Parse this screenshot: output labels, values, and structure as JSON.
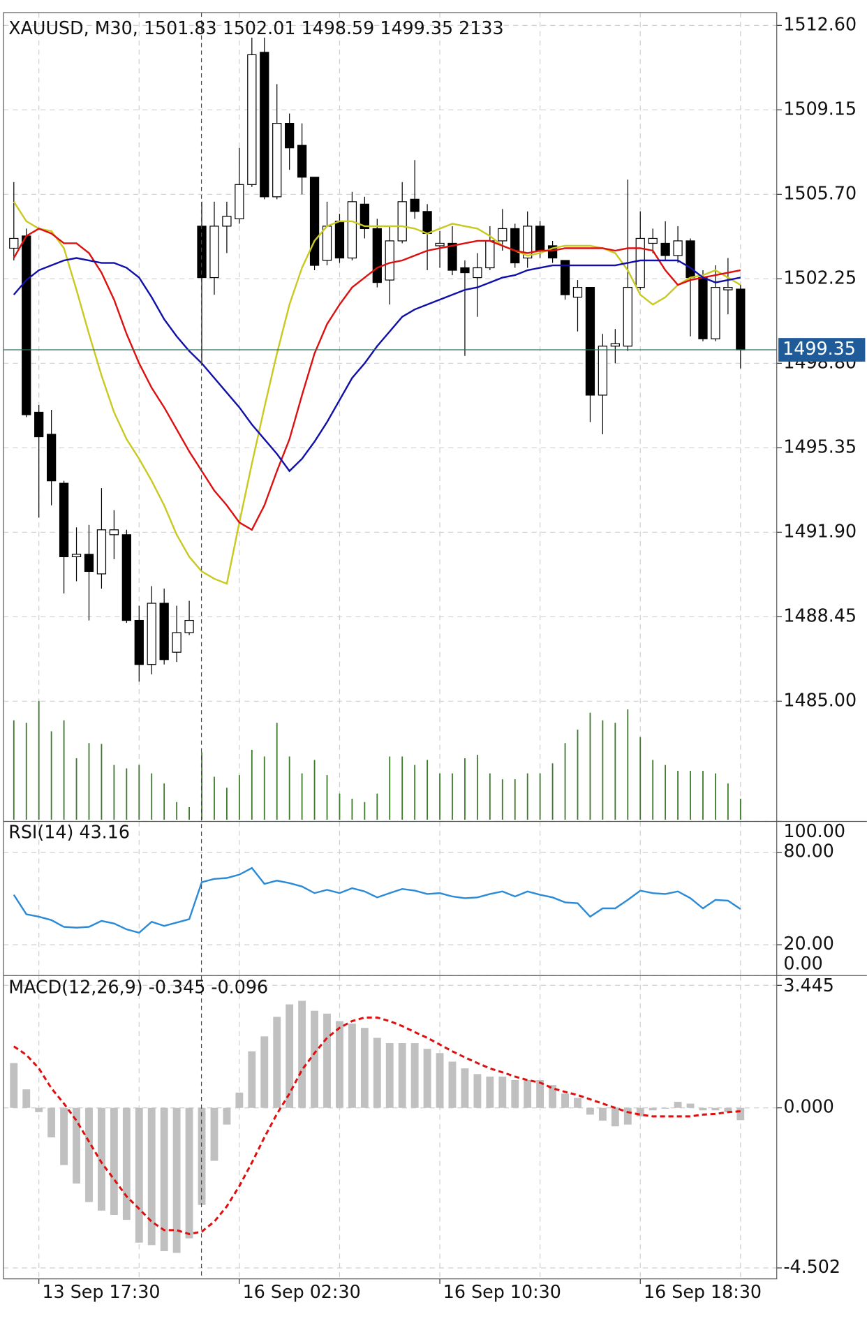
{
  "chart_data": [
    {
      "type": "candlestick",
      "title": "XAUUSD, M30,",
      "categories": [
        null,
        null,
        "13 Sep 17:30",
        null,
        null,
        null,
        null,
        null,
        null,
        null,
        null,
        null,
        null,
        null,
        null,
        null,
        null,
        null,
        "16 Sep 02:30",
        null,
        null,
        null,
        null,
        null,
        null,
        null,
        null,
        null,
        null,
        null,
        null,
        null,
        null,
        null,
        "16 Sep 10:30",
        null,
        null,
        null,
        null,
        null,
        null,
        null,
        null,
        null,
        null,
        null,
        null,
        null,
        null,
        null,
        "16 Sep 18:30",
        null,
        null,
        null,
        null,
        null,
        null,
        null,
        null
      ],
      "open": [
        1503.5,
        1504.0,
        1496.8,
        1495.9,
        1493.9,
        1490.9,
        1491.0,
        1490.2,
        1491.8,
        1491.8,
        1488.3,
        1486.5,
        1489.0,
        1487.0,
        1487.8,
        1504.4,
        1502.3,
        1504.4,
        1504.7,
        1506.1,
        1511.5,
        1505.6,
        1508.6,
        1507.7,
        1506.4,
        1503.0,
        1504.6,
        1503.1,
        1505.3,
        1504.3,
        1502.2,
        1503.8,
        1505.5,
        1505.0,
        1503.6,
        1503.7,
        1502.7,
        1502.3,
        1502.7,
        1503.8,
        1504.3,
        1503.1,
        1504.4,
        1503.6,
        1503.0,
        1501.5,
        1501.9,
        1497.5,
        1499.5,
        1499.5,
        1501.9,
        1503.7,
        1503.7,
        1503.2,
        1503.8,
        1502.3,
        1499.8,
        1501.8,
        1501.83
      ],
      "high": [
        1506.2,
        1504.3,
        1497.1,
        1496.9,
        1494.0,
        1492.1,
        1492.2,
        1493.7,
        1492.8,
        1492.0,
        1488.9,
        1489.7,
        1489.6,
        1488.9,
        1489.1,
        1505.4,
        1505.4,
        1505.4,
        1507.6,
        1512.1,
        1512.1,
        1510.2,
        1509.0,
        1508.6,
        1506.4,
        1505.4,
        1504.9,
        1505.8,
        1505.6,
        1504.7,
        1504.4,
        1506.2,
        1507.1,
        1505.3,
        1504.2,
        1504.4,
        1503.0,
        1503.3,
        1504.4,
        1505.1,
        1504.5,
        1505.0,
        1504.6,
        1503.8,
        1503.0,
        1502.2,
        1501.9,
        1500.0,
        1500.2,
        1506.3,
        1505.0,
        1504.3,
        1504.6,
        1504.4,
        1503.9,
        1502.6,
        1502.8,
        1503.1,
        1502.01
      ],
      "low": [
        1503.0,
        1496.6,
        1492.5,
        1493.0,
        1489.4,
        1489.9,
        1488.3,
        1489.6,
        1490.8,
        1488.2,
        1485.8,
        1486.1,
        1486.5,
        1486.6,
        1487.7,
        1498.8,
        1501.6,
        1503.3,
        1504.5,
        1506.0,
        1505.5,
        1505.5,
        1506.7,
        1505.7,
        1502.6,
        1502.8,
        1502.9,
        1503.0,
        1503.9,
        1501.9,
        1501.2,
        1503.7,
        1504.7,
        1502.6,
        1502.7,
        1502.4,
        1499.1,
        1500.7,
        1502.6,
        1503.4,
        1502.7,
        1502.7,
        1503.1,
        1502.9,
        1501.4,
        1500.1,
        1496.4,
        1495.9,
        1498.8,
        1499.3,
        1501.8,
        1503.3,
        1503.0,
        1502.9,
        1499.9,
        1499.7,
        1499.7,
        1500.8,
        1498.59
      ],
      "close": [
        1503.9,
        1496.7,
        1495.8,
        1494.0,
        1490.9,
        1491.0,
        1490.3,
        1492.0,
        1492.0,
        1488.3,
        1486.5,
        1489.0,
        1486.7,
        1487.8,
        1488.3,
        1502.3,
        1504.4,
        1504.8,
        1506.1,
        1511.4,
        1505.6,
        1508.6,
        1507.6,
        1506.4,
        1502.8,
        1504.4,
        1503.1,
        1505.4,
        1504.3,
        1502.1,
        1503.8,
        1505.4,
        1505.0,
        1504.1,
        1503.7,
        1502.6,
        1502.5,
        1502.7,
        1503.8,
        1504.3,
        1502.9,
        1504.4,
        1503.4,
        1503.1,
        1501.6,
        1501.9,
        1497.5,
        1499.5,
        1499.6,
        1501.9,
        1503.9,
        1503.9,
        1503.2,
        1503.8,
        1502.3,
        1499.8,
        1501.9,
        1501.9,
        1499.35
      ],
      "volume": [
        10068,
        9812,
        12030,
        8959,
        10068,
        6228,
        7764,
        7679,
        5546,
        5205,
        5546,
        4693,
        3669,
        1792,
        1280,
        6826,
        4351,
        3242,
        4522,
        7082,
        6399,
        9812,
        6399,
        4693,
        6058,
        4522,
        2645,
        2133,
        1792,
        2645,
        6399,
        6399,
        5546,
        6058,
        4693,
        4693,
        6228,
        6570,
        4693,
        4095,
        4095,
        4693,
        4693,
        5716,
        7764,
        9129,
        10836,
        10068,
        9812,
        11177,
        8361,
        6058,
        5546,
        4949,
        4949,
        4949,
        4693,
        3669,
        2133
      ],
      "volume_color": "#3d7a2c",
      "up_color": "#ffffff",
      "down_color": "#000000",
      "lines": [
        {
          "color": "#c9c920",
          "values": [
            1505.4,
            1504.6,
            1504.3,
            1504.2,
            1503.5,
            1501.8,
            1500.0,
            1498.3,
            1496.8,
            1495.7,
            1494.9,
            1494.0,
            1493.0,
            1491.8,
            1490.9,
            1490.3,
            1490.0,
            1489.8,
            1492.3,
            1494.7,
            1497.0,
            1499.2,
            1501.2,
            1502.7,
            1503.8,
            1504.4,
            1504.6,
            1504.6,
            1504.4,
            1504.4,
            1504.4,
            1504.4,
            1504.3,
            1504.1,
            1504.3,
            1504.5,
            1504.4,
            1504.3,
            1504.0,
            1503.6,
            1503.4,
            1503.2,
            1503.3,
            1503.5,
            1503.6,
            1503.6,
            1503.6,
            1503.5,
            1503.3,
            1502.6,
            1501.6,
            1501.2,
            1501.5,
            1502.0,
            1502.3,
            1502.4,
            1502.6,
            1502.3,
            1502.0
          ]
        },
        {
          "color": "#dd1010",
          "values": [
            1503.1,
            1504.0,
            1504.3,
            1504.1,
            1503.7,
            1503.7,
            1503.3,
            1502.5,
            1501.4,
            1500.0,
            1498.8,
            1497.8,
            1497.0,
            1496.1,
            1495.2,
            1494.4,
            1493.6,
            1493.0,
            1492.3,
            1492.0,
            1493.0,
            1494.4,
            1495.7,
            1497.5,
            1499.2,
            1500.4,
            1501.2,
            1501.9,
            1502.3,
            1502.7,
            1502.9,
            1503.0,
            1503.2,
            1503.4,
            1503.5,
            1503.6,
            1503.7,
            1503.8,
            1503.8,
            1503.6,
            1503.4,
            1503.3,
            1503.4,
            1503.4,
            1503.5,
            1503.5,
            1503.5,
            1503.5,
            1503.4,
            1503.5,
            1503.5,
            1503.4,
            1502.6,
            1502.0,
            1502.2,
            1502.3,
            1502.4,
            1502.5,
            1502.6
          ]
        },
        {
          "color": "#1010a8",
          "values": [
            1501.6,
            1502.2,
            1502.6,
            1502.8,
            1503.0,
            1503.1,
            1503.0,
            1502.9,
            1502.9,
            1502.7,
            1502.3,
            1501.5,
            1500.6,
            1499.9,
            1499.3,
            1498.8,
            1498.2,
            1497.6,
            1497.0,
            1496.3,
            1495.7,
            1495.1,
            1494.4,
            1494.9,
            1495.6,
            1496.4,
            1497.3,
            1498.2,
            1498.8,
            1499.5,
            1500.1,
            1500.7,
            1501.0,
            1501.2,
            1501.4,
            1501.6,
            1501.8,
            1501.9,
            1502.1,
            1502.3,
            1502.4,
            1502.6,
            1502.7,
            1502.8,
            1502.8,
            1502.8,
            1502.8,
            1502.8,
            1502.8,
            1502.9,
            1503.0,
            1503.0,
            1503.0,
            1503.0,
            1502.7,
            1502.3,
            1502.1,
            1502.2,
            1502.3
          ]
        }
      ],
      "price_line_color": "#2f6f5f",
      "price_tag_color": "#1f5a99",
      "ylim": [
        1480.16,
        1513.12
      ],
      "yticks": [
        {
          "value": 1485,
          "label": "1485.00"
        },
        1488.45,
        {
          "value": 1491.9,
          "label": "1491.90"
        },
        1495.35,
        {
          "value": 1498.8,
          "label": "1498.80"
        },
        1502.25,
        {
          "value": 1505.7,
          "label": "1505.70"
        },
        1509.15,
        {
          "value": 1512.6,
          "label": "1512.60"
        }
      ],
      "grid": true
    },
    {
      "type": "line",
      "title": "RSI(14)",
      "color": "#2b8ad6",
      "values": [
        52.4,
        39.8,
        38.2,
        36.0,
        31.6,
        31.1,
        31.6,
        35.5,
        33.8,
        30.0,
        27.8,
        34.9,
        32.2,
        34.4,
        36.6,
        60.6,
        62.7,
        63.3,
        65.5,
        69.8,
        59.5,
        61.6,
        60.0,
        57.8,
        53.5,
        55.6,
        53.5,
        56.7,
        54.6,
        50.7,
        53.5,
        56.2,
        55.1,
        52.9,
        53.5,
        51.3,
        50.2,
        50.7,
        52.9,
        54.6,
        51.3,
        54.6,
        52.4,
        50.7,
        47.5,
        46.9,
        38.2,
        43.6,
        43.6,
        49.1,
        55.1,
        53.5,
        52.9,
        54.6,
        50.2,
        43.6,
        49.1,
        48.6,
        43.16
      ],
      "ylim": [
        0,
        100
      ],
      "yticks": [
        {
          "value": 0,
          "label": "0.00"
        },
        {
          "value": 20,
          "label": "20.00"
        },
        {
          "value": 80,
          "label": "80.00"
        },
        {
          "value": 100,
          "label": "100.00"
        }
      ],
      "grid": true
    },
    {
      "type": "bar",
      "title": "MACD(12,26,9)",
      "color": "#c0c0c0",
      "values": [
        1.26,
        0.52,
        -0.12,
        -0.83,
        -1.61,
        -2.13,
        -2.65,
        -2.89,
        -3.01,
        -3.15,
        -3.79,
        -3.86,
        -4.03,
        -4.08,
        -3.67,
        -2.73,
        -1.49,
        -0.47,
        0.43,
        1.59,
        2.01,
        2.56,
        2.91,
        3.01,
        2.73,
        2.65,
        2.44,
        2.37,
        2.25,
        1.97,
        1.82,
        1.82,
        1.82,
        1.66,
        1.54,
        1.3,
        1.11,
        0.95,
        0.88,
        0.88,
        0.78,
        0.78,
        0.78,
        0.64,
        0.4,
        0.28,
        -0.19,
        -0.36,
        -0.52,
        -0.47,
        -0.24,
        -0.07,
        -0.02,
        0.17,
        0.12,
        -0.07,
        -0.07,
        -0.12,
        -0.345
      ],
      "lines": [
        {
          "color": "#dd1010",
          "dashed": true,
          "values": [
            1.73,
            1.49,
            1.11,
            0.55,
            0.12,
            -0.36,
            -0.95,
            -1.54,
            -2.01,
            -2.49,
            -2.84,
            -3.2,
            -3.44,
            -3.44,
            -3.55,
            -3.48,
            -3.2,
            -2.77,
            -2.2,
            -1.54,
            -0.83,
            -0.17,
            0.4,
            1.07,
            1.54,
            1.97,
            2.25,
            2.44,
            2.54,
            2.54,
            2.44,
            2.3,
            2.13,
            1.97,
            1.78,
            1.59,
            1.42,
            1.26,
            1.11,
            1.0,
            0.88,
            0.78,
            0.71,
            0.55,
            0.45,
            0.36,
            0.24,
            0.12,
            0.0,
            -0.12,
            -0.19,
            -0.24,
            -0.24,
            -0.24,
            -0.24,
            -0.19,
            -0.17,
            -0.12,
            -0.096
          ]
        }
      ],
      "ylim": [
        -4.81,
        3.72
      ],
      "yticks": [
        -4.502,
        {
          "value": 0,
          "label": "0.000"
        },
        3.445
      ],
      "grid": true
    }
  ]
}
